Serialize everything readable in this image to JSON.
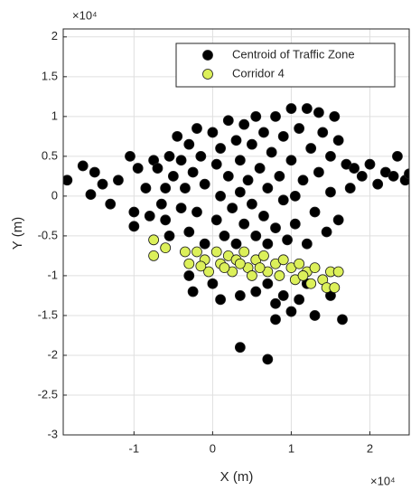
{
  "chart_data": {
    "type": "scatter",
    "xlabel": "X (m)",
    "ylabel": "Y (m)",
    "x_multiplier": "×10⁴",
    "y_multiplier": "×10⁴",
    "xlim": [
      -1.9,
      2.5
    ],
    "ylim": [
      -3,
      2.1
    ],
    "xticks": [
      -1,
      0,
      1,
      2
    ],
    "yticks": [
      -3,
      -2.5,
      -2,
      -1.5,
      -1,
      -0.5,
      0,
      0.5,
      1,
      1.5,
      2
    ],
    "grid": true,
    "legend": "northeast",
    "series": [
      {
        "name": "Centroid of Traffic Zone",
        "color": "#000000",
        "x": [
          -1.85,
          -1.65,
          -1.5,
          -1.4,
          -1.55,
          -1.3,
          -1.2,
          -1.05,
          -1.0,
          -1.0,
          -0.95,
          -0.85,
          -0.8,
          -0.75,
          -0.7,
          -0.65,
          -0.6,
          -0.6,
          -0.55,
          -0.55,
          -0.5,
          -0.45,
          -0.4,
          -0.4,
          -0.35,
          -0.3,
          -0.3,
          -0.25,
          -0.2,
          -0.2,
          -0.15,
          -0.1,
          -0.1,
          0.0,
          0.05,
          0.05,
          0.1,
          0.1,
          0.15,
          0.2,
          0.2,
          0.25,
          0.3,
          0.3,
          0.35,
          0.35,
          0.4,
          0.4,
          0.45,
          0.5,
          0.5,
          0.55,
          0.55,
          0.6,
          0.65,
          0.65,
          0.7,
          0.7,
          0.75,
          0.8,
          0.8,
          0.85,
          0.9,
          0.9,
          0.95,
          1.0,
          1.0,
          1.05,
          1.05,
          1.1,
          1.15,
          1.2,
          1.2,
          1.25,
          1.3,
          1.35,
          1.35,
          1.4,
          1.45,
          1.5,
          1.5,
          1.55,
          1.6,
          1.6,
          1.7,
          1.75,
          1.8,
          1.9,
          2.0,
          2.1,
          2.2,
          2.3,
          2.35,
          2.45,
          2.5,
          -0.3,
          -0.25,
          0.0,
          0.1,
          0.35,
          0.55,
          0.7,
          0.8,
          0.9,
          0.8,
          1.0,
          1.1,
          1.3,
          1.5,
          1.65,
          0.35,
          0.7,
          1.2
        ],
        "y": [
          0.2,
          0.38,
          0.3,
          0.15,
          0.02,
          -0.1,
          0.2,
          0.5,
          -0.2,
          -0.38,
          0.35,
          0.1,
          -0.25,
          0.45,
          0.35,
          -0.1,
          0.1,
          -0.3,
          0.5,
          -0.5,
          0.25,
          0.75,
          0.45,
          -0.15,
          0.1,
          0.65,
          -0.45,
          0.3,
          0.85,
          -0.2,
          0.5,
          0.15,
          -0.6,
          0.8,
          0.4,
          -0.3,
          0.0,
          0.6,
          -0.5,
          0.95,
          0.25,
          -0.15,
          0.7,
          -0.6,
          0.45,
          0.05,
          0.9,
          -0.35,
          0.2,
          0.65,
          -0.1,
          1.0,
          -0.5,
          0.35,
          0.8,
          -0.25,
          0.1,
          -0.6,
          0.55,
          1.0,
          -0.4,
          0.25,
          0.75,
          -0.05,
          -0.55,
          1.1,
          0.45,
          0.0,
          -0.35,
          0.85,
          0.2,
          1.1,
          -0.6,
          0.6,
          -0.2,
          1.05,
          0.3,
          0.8,
          -0.45,
          0.5,
          0.05,
          1.0,
          0.7,
          -0.3,
          0.4,
          0.1,
          0.35,
          0.25,
          0.4,
          0.15,
          0.3,
          0.25,
          0.5,
          0.2,
          0.28,
          -1.0,
          -1.2,
          -1.1,
          -1.3,
          -1.25,
          -1.2,
          -1.1,
          -1.35,
          -1.25,
          -1.55,
          -1.45,
          -1.3,
          -1.5,
          -1.25,
          -1.55,
          -1.9,
          -2.05,
          -1.1
        ]
      },
      {
        "name": "Corridor 4",
        "color": "#dcf05a",
        "x": [
          -0.75,
          -0.75,
          -0.6,
          -0.35,
          -0.3,
          -0.2,
          -0.1,
          -0.05,
          0.05,
          0.1,
          0.2,
          0.25,
          0.3,
          0.4,
          0.45,
          0.5,
          0.55,
          0.65,
          0.7,
          0.8,
          0.85,
          0.9,
          1.0,
          1.05,
          1.1,
          1.2,
          1.25,
          1.3,
          1.4,
          1.45,
          1.5,
          1.55,
          1.6,
          0.15,
          0.6,
          1.15,
          0.35,
          -0.15
        ],
        "y": [
          -0.55,
          -0.75,
          -0.65,
          -0.7,
          -0.85,
          -0.7,
          -0.8,
          -0.95,
          -0.7,
          -0.85,
          -0.75,
          -0.95,
          -0.8,
          -0.7,
          -0.9,
          -1.0,
          -0.8,
          -0.75,
          -0.95,
          -0.85,
          -1.0,
          -0.8,
          -0.9,
          -1.05,
          -0.85,
          -0.95,
          -1.1,
          -0.9,
          -1.05,
          -1.15,
          -0.95,
          -1.15,
          -0.95,
          -0.9,
          -0.9,
          -1.0,
          -0.85,
          -0.88
        ]
      }
    ]
  }
}
